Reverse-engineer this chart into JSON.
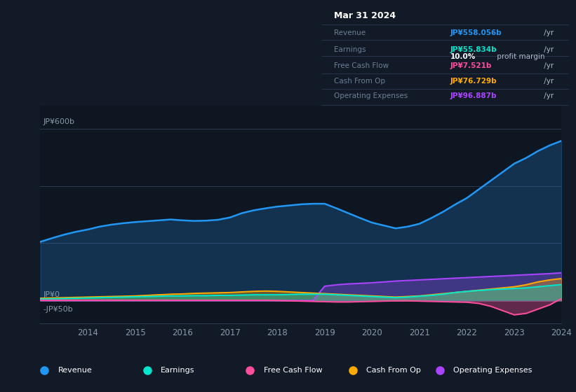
{
  "bg_color": "#131a27",
  "plot_bg_color": "#0e1621",
  "years": [
    2013.0,
    2013.25,
    2013.5,
    2013.75,
    2014.0,
    2014.25,
    2014.5,
    2014.75,
    2015.0,
    2015.25,
    2015.5,
    2015.75,
    2016.0,
    2016.25,
    2016.5,
    2016.75,
    2017.0,
    2017.25,
    2017.5,
    2017.75,
    2018.0,
    2018.25,
    2018.5,
    2018.75,
    2019.0,
    2019.25,
    2019.5,
    2019.75,
    2020.0,
    2020.25,
    2020.5,
    2020.75,
    2021.0,
    2021.25,
    2021.5,
    2021.75,
    2022.0,
    2022.25,
    2022.5,
    2022.75,
    2023.0,
    2023.25,
    2023.5,
    2023.75,
    2024.0
  ],
  "revenue": [
    205,
    218,
    230,
    240,
    248,
    258,
    265,
    270,
    274,
    277,
    280,
    283,
    280,
    278,
    279,
    282,
    290,
    305,
    315,
    322,
    328,
    332,
    336,
    338,
    338,
    322,
    305,
    288,
    272,
    262,
    252,
    258,
    268,
    288,
    310,
    335,
    358,
    388,
    418,
    448,
    478,
    498,
    522,
    542,
    558
  ],
  "earnings": [
    5,
    6,
    7,
    8,
    9,
    10,
    11,
    12,
    13,
    14,
    15,
    16,
    16,
    17,
    17,
    18,
    18,
    19,
    20,
    20,
    20,
    21,
    22,
    22,
    22,
    20,
    18,
    16,
    14,
    12,
    10,
    12,
    15,
    18,
    22,
    28,
    32,
    35,
    38,
    40,
    42,
    44,
    48,
    52,
    55.834
  ],
  "free_cash_flow": [
    1,
    1,
    1,
    1,
    1,
    1,
    1,
    1,
    1,
    1,
    1,
    1,
    1,
    1,
    1,
    1,
    1,
    1,
    1,
    1,
    0,
    -1,
    -2,
    -3,
    -4,
    -5,
    -5,
    -4,
    -3,
    -2,
    -1,
    -1,
    -2,
    -3,
    -4,
    -5,
    -6,
    -10,
    -20,
    -35,
    -50,
    -45,
    -30,
    -15,
    7.521
  ],
  "cash_from_op": [
    8,
    9,
    10,
    11,
    12,
    13,
    14,
    15,
    16,
    18,
    20,
    22,
    23,
    25,
    26,
    27,
    28,
    30,
    32,
    33,
    32,
    30,
    28,
    26,
    24,
    22,
    20,
    18,
    16,
    14,
    12,
    14,
    16,
    20,
    24,
    28,
    32,
    36,
    40,
    44,
    48,
    55,
    65,
    72,
    76.729
  ],
  "operating_expenses": [
    0,
    0,
    0,
    0,
    0,
    0,
    0,
    0,
    0,
    0,
    0,
    0,
    0,
    0,
    0,
    0,
    0,
    0,
    0,
    0,
    0,
    0,
    0,
    0,
    50,
    55,
    58,
    60,
    62,
    65,
    68,
    70,
    72,
    74,
    76,
    78,
    80,
    82,
    84,
    86,
    88,
    90,
    92,
    94,
    96.887
  ],
  "x_ticks": [
    2014,
    2015,
    2016,
    2017,
    2018,
    2019,
    2020,
    2021,
    2022,
    2023,
    2024
  ],
  "revenue_color": "#2196f3",
  "earnings_color": "#00e5cc",
  "free_cash_flow_color": "#ff4d9e",
  "cash_from_op_color": "#ffaa00",
  "operating_expenses_color": "#aa44ff",
  "info_box": {
    "date": "Mar 31 2024",
    "revenue_label": "Revenue",
    "revenue_val": "JP¥558.056b",
    "revenue_color": "#2196f3",
    "earnings_label": "Earnings",
    "earnings_val": "JP¥55.834b",
    "earnings_color": "#00e5cc",
    "profit_margin": "10.0%",
    "fcf_label": "Free Cash Flow",
    "fcf_val": "JP¥7.521b",
    "fcf_color": "#ff4d9e",
    "cashop_label": "Cash From Op",
    "cashop_val": "JP¥76.729b",
    "cashop_color": "#ffaa00",
    "opex_label": "Operating Expenses",
    "opex_val": "JP¥96.887b",
    "opex_color": "#aa44ff"
  },
  "legend_items": [
    {
      "label": "Revenue",
      "color": "#2196f3"
    },
    {
      "label": "Earnings",
      "color": "#00e5cc"
    },
    {
      "label": "Free Cash Flow",
      "color": "#ff4d9e"
    },
    {
      "label": "Cash From Op",
      "color": "#ffaa00"
    },
    {
      "label": "Operating Expenses",
      "color": "#aa44ff"
    }
  ]
}
